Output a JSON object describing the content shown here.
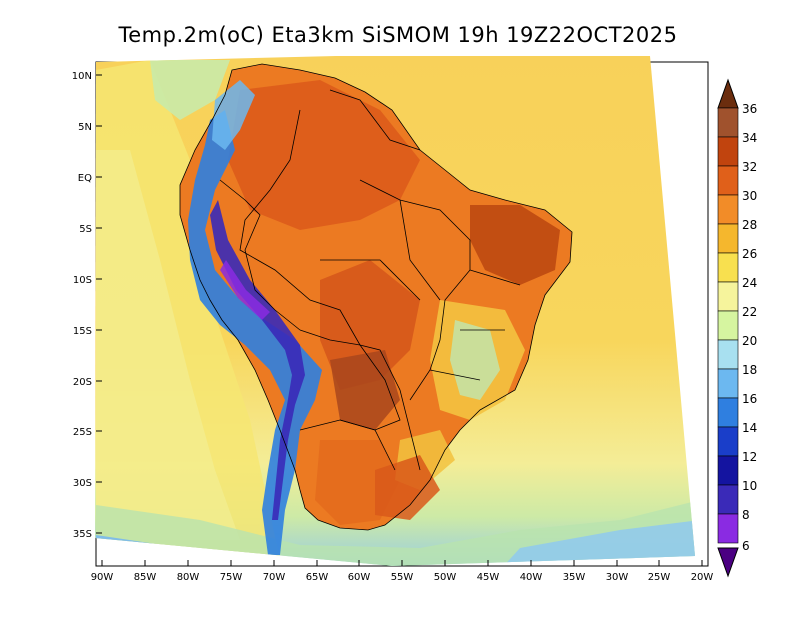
{
  "title": "Temp.2m(oC) Eta3km SiSMOM 19h 19Z22OCT2025",
  "map": {
    "lat_labels": [
      "10N",
      "5N",
      "EQ",
      "5S",
      "10S",
      "15S",
      "20S",
      "25S",
      "30S",
      "35S"
    ],
    "lon_labels": [
      "90W",
      "85W",
      "80W",
      "75W",
      "70W",
      "65W",
      "60W",
      "55W",
      "50W",
      "45W",
      "40W",
      "35W",
      "30W",
      "25W",
      "20W"
    ],
    "lat_range": [
      10,
      -38
    ],
    "lon_range": [
      -90,
      -20
    ]
  },
  "colorbar": {
    "labels": [
      "36",
      "34",
      "32",
      "30",
      "28",
      "26",
      "24",
      "22",
      "20",
      "18",
      "16",
      "14",
      "12",
      "10",
      "8",
      "6"
    ],
    "colors": [
      "#a0522d",
      "#c1440e",
      "#e0601a",
      "#f28c28",
      "#f5b72d",
      "#f8e04f",
      "#f6f49c",
      "#d6f5a0",
      "#a8e0f0",
      "#6cb8f0",
      "#2f7fe0",
      "#1a3ec9",
      "#1414a0",
      "#3a2ab8",
      "#8a2be2",
      "#6a0dad"
    ],
    "top_color": "#6b2d0e",
    "bottom_color": "#4b0082"
  }
}
